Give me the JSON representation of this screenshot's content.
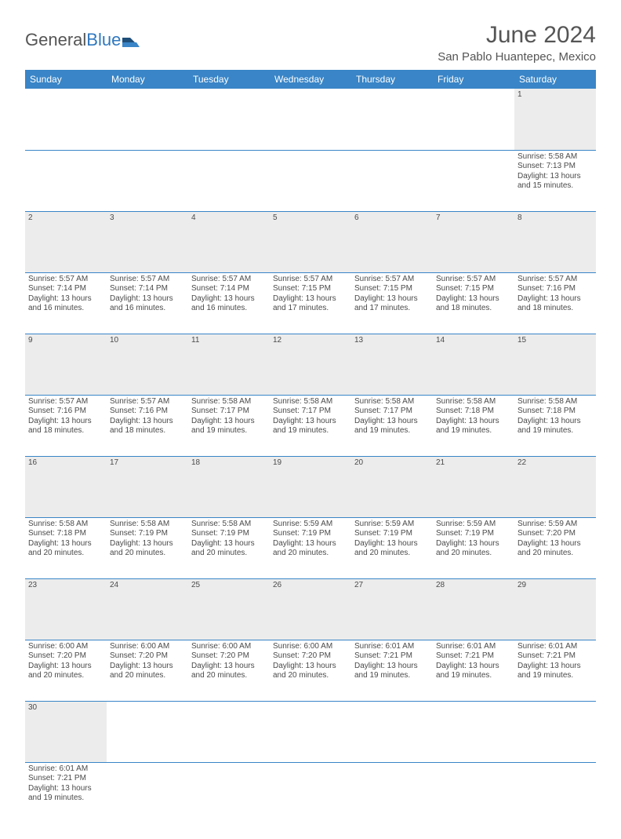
{
  "logo": {
    "text1": "General",
    "text2": "Blue"
  },
  "title": "June 2024",
  "location": "San Pablo Huantepec, Mexico",
  "colors": {
    "header_bg": "#3985c7",
    "header_text": "#ffffff",
    "daynum_bg": "#ececec",
    "cell_border": "#3985c7",
    "text": "#4a4a4a",
    "logo_blue": "#2f78bf"
  },
  "typography": {
    "title_fontsize": 30,
    "location_fontsize": 15,
    "dayheader_fontsize": 12,
    "cell_fontsize": 10
  },
  "weekdays": [
    "Sunday",
    "Monday",
    "Tuesday",
    "Wednesday",
    "Thursday",
    "Friday",
    "Saturday"
  ],
  "weeks": [
    {
      "nums": [
        "",
        "",
        "",
        "",
        "",
        "",
        "1"
      ],
      "cells": [
        "",
        "",
        "",
        "",
        "",
        "",
        "Sunrise: 5:58 AM\nSunset: 7:13 PM\nDaylight: 13 hours and 15 minutes."
      ]
    },
    {
      "nums": [
        "2",
        "3",
        "4",
        "5",
        "6",
        "7",
        "8"
      ],
      "cells": [
        "Sunrise: 5:57 AM\nSunset: 7:14 PM\nDaylight: 13 hours and 16 minutes.",
        "Sunrise: 5:57 AM\nSunset: 7:14 PM\nDaylight: 13 hours and 16 minutes.",
        "Sunrise: 5:57 AM\nSunset: 7:14 PM\nDaylight: 13 hours and 16 minutes.",
        "Sunrise: 5:57 AM\nSunset: 7:15 PM\nDaylight: 13 hours and 17 minutes.",
        "Sunrise: 5:57 AM\nSunset: 7:15 PM\nDaylight: 13 hours and 17 minutes.",
        "Sunrise: 5:57 AM\nSunset: 7:15 PM\nDaylight: 13 hours and 18 minutes.",
        "Sunrise: 5:57 AM\nSunset: 7:16 PM\nDaylight: 13 hours and 18 minutes."
      ]
    },
    {
      "nums": [
        "9",
        "10",
        "11",
        "12",
        "13",
        "14",
        "15"
      ],
      "cells": [
        "Sunrise: 5:57 AM\nSunset: 7:16 PM\nDaylight: 13 hours and 18 minutes.",
        "Sunrise: 5:57 AM\nSunset: 7:16 PM\nDaylight: 13 hours and 18 minutes.",
        "Sunrise: 5:58 AM\nSunset: 7:17 PM\nDaylight: 13 hours and 19 minutes.",
        "Sunrise: 5:58 AM\nSunset: 7:17 PM\nDaylight: 13 hours and 19 minutes.",
        "Sunrise: 5:58 AM\nSunset: 7:17 PM\nDaylight: 13 hours and 19 minutes.",
        "Sunrise: 5:58 AM\nSunset: 7:18 PM\nDaylight: 13 hours and 19 minutes.",
        "Sunrise: 5:58 AM\nSunset: 7:18 PM\nDaylight: 13 hours and 19 minutes."
      ]
    },
    {
      "nums": [
        "16",
        "17",
        "18",
        "19",
        "20",
        "21",
        "22"
      ],
      "cells": [
        "Sunrise: 5:58 AM\nSunset: 7:18 PM\nDaylight: 13 hours and 20 minutes.",
        "Sunrise: 5:58 AM\nSunset: 7:19 PM\nDaylight: 13 hours and 20 minutes.",
        "Sunrise: 5:58 AM\nSunset: 7:19 PM\nDaylight: 13 hours and 20 minutes.",
        "Sunrise: 5:59 AM\nSunset: 7:19 PM\nDaylight: 13 hours and 20 minutes.",
        "Sunrise: 5:59 AM\nSunset: 7:19 PM\nDaylight: 13 hours and 20 minutes.",
        "Sunrise: 5:59 AM\nSunset: 7:19 PM\nDaylight: 13 hours and 20 minutes.",
        "Sunrise: 5:59 AM\nSunset: 7:20 PM\nDaylight: 13 hours and 20 minutes."
      ]
    },
    {
      "nums": [
        "23",
        "24",
        "25",
        "26",
        "27",
        "28",
        "29"
      ],
      "cells": [
        "Sunrise: 6:00 AM\nSunset: 7:20 PM\nDaylight: 13 hours and 20 minutes.",
        "Sunrise: 6:00 AM\nSunset: 7:20 PM\nDaylight: 13 hours and 20 minutes.",
        "Sunrise: 6:00 AM\nSunset: 7:20 PM\nDaylight: 13 hours and 20 minutes.",
        "Sunrise: 6:00 AM\nSunset: 7:20 PM\nDaylight: 13 hours and 20 minutes.",
        "Sunrise: 6:01 AM\nSunset: 7:21 PM\nDaylight: 13 hours and 19 minutes.",
        "Sunrise: 6:01 AM\nSunset: 7:21 PM\nDaylight: 13 hours and 19 minutes.",
        "Sunrise: 6:01 AM\nSunset: 7:21 PM\nDaylight: 13 hours and 19 minutes."
      ]
    },
    {
      "nums": [
        "30",
        "",
        "",
        "",
        "",
        "",
        ""
      ],
      "cells": [
        "Sunrise: 6:01 AM\nSunset: 7:21 PM\nDaylight: 13 hours and 19 minutes.",
        "",
        "",
        "",
        "",
        "",
        ""
      ]
    }
  ]
}
